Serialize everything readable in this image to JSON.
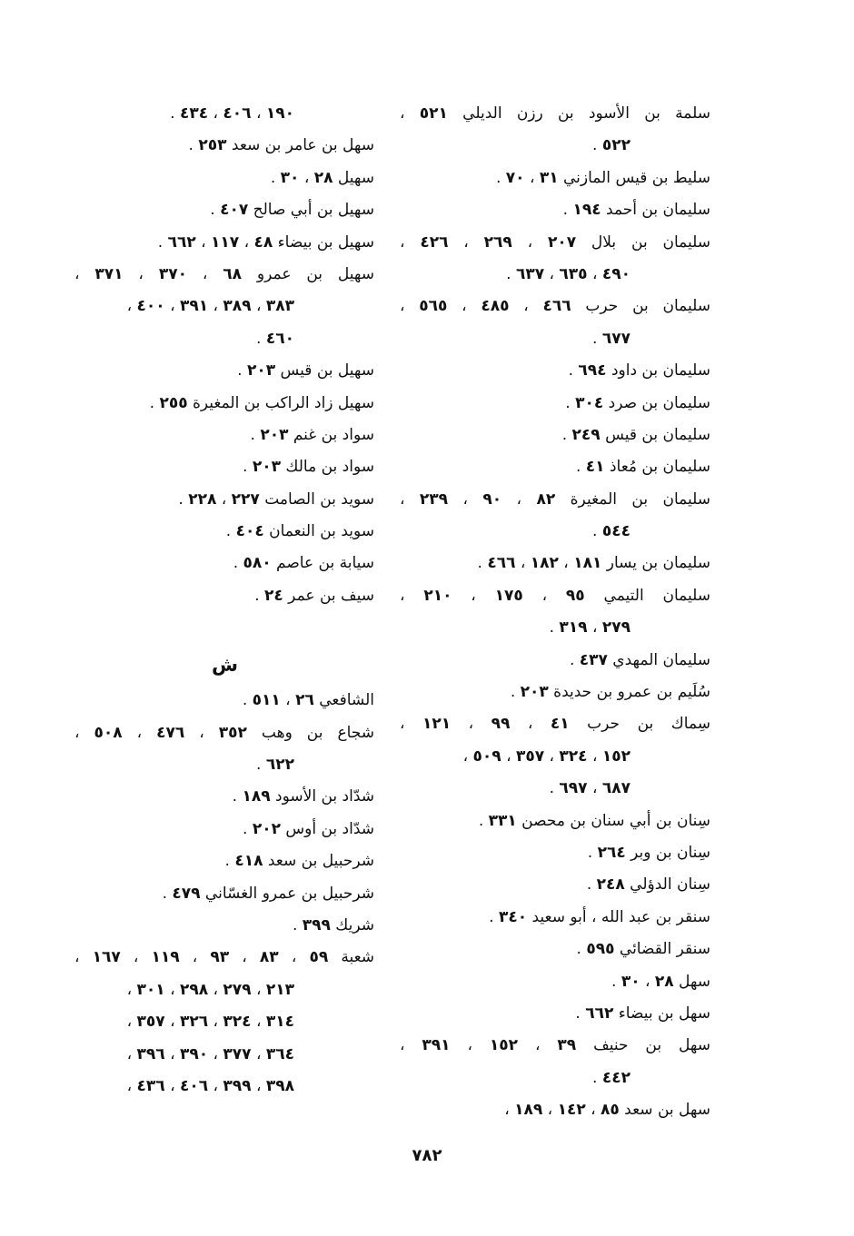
{
  "right_column": {
    "entries": [
      {
        "lines": [
          "سلمة بن الأسود بن رزن الديلي ٥٢١ ،",
          "٥٢٢ ."
        ]
      },
      {
        "lines": [
          "سليط بن قيس المازني ٣١ ، ٧٠ ."
        ]
      },
      {
        "lines": [
          "سليمان بن أحمد ١٩٤ ."
        ]
      },
      {
        "lines": [
          "سليمان بن بلال ٢٠٧ ، ٢٦٩ ، ٤٢٦ ،",
          "٤٩٠ ، ٦٣٥ ، ٦٣٧ ."
        ]
      },
      {
        "lines": [
          "سليمان بن حرب ٤٦٦ ، ٤٨٥ ، ٥٦٥ ،",
          "٦٧٧ ."
        ]
      },
      {
        "lines": [
          "سليمان بن داود ٦٩٤ ."
        ]
      },
      {
        "lines": [
          "سليمان بن صرد ٣٠٤ ."
        ]
      },
      {
        "lines": [
          "سليمان بن قيس ٢٤٩ ."
        ]
      },
      {
        "lines": [
          "سليمان بن مُعاذ ٤١ ."
        ]
      },
      {
        "lines": [
          "سليمان بن المغيرة ٨٢ ، ٩٠ ، ٢٣٩ ،",
          "٥٤٤ ."
        ]
      },
      {
        "lines": [
          "سليمان بن يسار ١٨١ ، ١٨٢ ، ٤٦٦ ."
        ]
      },
      {
        "lines": [
          "سليمان التيمي ٩٥ ، ١٧٥ ، ٢١٠ ،",
          "٢٧٩ ، ٣١٩ ."
        ]
      },
      {
        "lines": [
          "سليمان المهدي ٤٣٧ ."
        ]
      },
      {
        "lines": [
          "سُلَيم بن عمرو بن حديدة ٢٠٣ ."
        ]
      },
      {
        "lines": [
          "سِماك بن حرب ٤١ ، ٩٩ ، ١٢١ ،",
          "١٥٢ ، ٣٢٤ ، ٣٥٧ ، ٥٠٩ ،",
          "٦٨٧ ، ٦٩٧ ."
        ]
      },
      {
        "lines": [
          "سِنان بن أبي سنان بن محصن ٣٣١ ."
        ]
      },
      {
        "lines": [
          "سِنان بن وبر ٢٦٤ ."
        ]
      },
      {
        "lines": [
          "سِنان الدؤلي ٢٤٨ ."
        ]
      },
      {
        "lines": [
          "سنقر بن عبد الله ، أبو سعيد ٣٤٠ ."
        ]
      },
      {
        "lines": [
          "سنقر القضائي ٥٩٥ ."
        ]
      },
      {
        "lines": [
          "سهل ٢٨ ، ٣٠ ."
        ]
      },
      {
        "lines": [
          "سهل بن بيضاء ٦٦٢ ."
        ]
      },
      {
        "lines": [
          "سهل بن حنيف ٣٩ ، ١٥٢ ، ٣٩١ ،",
          "٤٤٢ ."
        ]
      },
      {
        "lines": [
          "سهل بن سعد ٨٥ ، ١٤٢ ، ١٨٩ ،"
        ]
      }
    ]
  },
  "left_column": {
    "entries": [
      {
        "lines": [
          "١٩٠ ، ٤٠٦ ، ٤٣٤ ."
        ],
        "continued": true
      },
      {
        "lines": [
          "سهل بن عامر بن سعد ٢٥٣ ."
        ]
      },
      {
        "lines": [
          "سهيل ٢٨ ، ٣٠ ."
        ]
      },
      {
        "lines": [
          "سهيل بن أبي صالح ٤٠٧ ."
        ]
      },
      {
        "lines": [
          "سهيل بن بيضاء ٤٨ ، ١١٧ ، ٦٦٢ ."
        ]
      },
      {
        "lines": [
          "سهيل بن عمرو ٦٨ ، ٣٧٠ ، ٣٧١ ،",
          "٣٨٣ ، ٣٨٩ ، ٣٩١ ، ٤٠٠ ،",
          "٤٦٠ ."
        ]
      },
      {
        "lines": [
          "سهيل بن قيس ٢٠٣ ."
        ]
      },
      {
        "lines": [
          "سهيل زاد الراكب بن المغيرة ٢٥٥ ."
        ]
      },
      {
        "lines": [
          "سواد بن غنم ٢٠٣ ."
        ]
      },
      {
        "lines": [
          "سواد بن مالك ٢٠٣ ."
        ]
      },
      {
        "lines": [
          "سويد بن الصامت ٢٢٧ ، ٢٢٨ ."
        ]
      },
      {
        "lines": [
          "سويد بن النعمان ٤٠٤ ."
        ]
      },
      {
        "lines": [
          "سيابة بن عاصم ٥٨٠ ."
        ]
      },
      {
        "lines": [
          "سيف بن عمر ٢٤ ."
        ]
      }
    ],
    "section_letter": "ش",
    "section_entries": [
      {
        "lines": [
          "الشافعي ٢٦ ، ٥١١ ."
        ]
      },
      {
        "lines": [
          "شجاع بن وهب ٣٥٢ ، ٤٧٦ ، ٥٠٨ ،",
          "٦٢٢ ."
        ]
      },
      {
        "lines": [
          "شدّاد بن الأسود ١٨٩ ."
        ]
      },
      {
        "lines": [
          "شدّاد بن أوس ٢٠٢ ."
        ]
      },
      {
        "lines": [
          "شرحبيل بن سعد ٤١٨ ."
        ]
      },
      {
        "lines": [
          "شرحبيل بن عمرو الغسّاني ٤٧٩ ."
        ]
      },
      {
        "lines": [
          "شريك ٣٩٩ ."
        ]
      },
      {
        "lines": [
          "شعبة ٥٩ ، ٨٣ ، ٩٣ ، ١١٩ ، ١٦٧ ،",
          "٢١٣ ، ٢٧٩ ، ٢٩٨ ، ٣٠١ ،",
          "٣١٤ ، ٣٢٤ ، ٣٢٦ ، ٣٥٧ ،",
          "٣٦٤ ، ٣٧٧ ، ٣٩٠ ، ٣٩٦ ،",
          "٣٩٨ ، ٣٩٩ ، ٤٠٦ ، ٤٣٦ ،"
        ]
      }
    ]
  },
  "page_number": "٧٨٢"
}
